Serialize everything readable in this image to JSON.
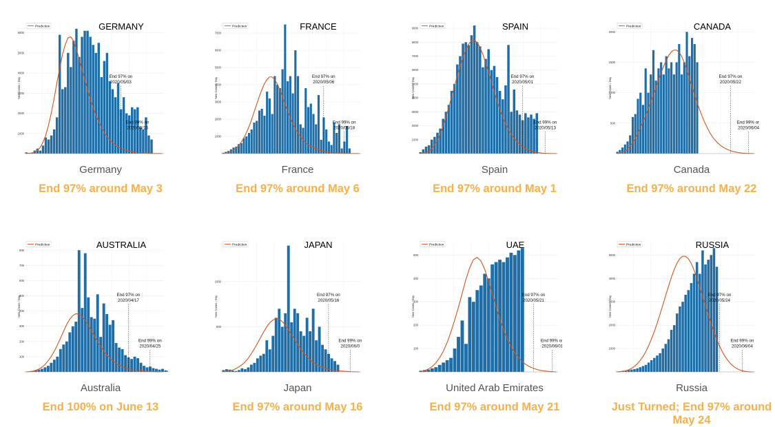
{
  "colors": {
    "bar": "#1f6ea8",
    "prediction": "#d95319",
    "caption": "#f7b04a",
    "label": "#555555"
  },
  "charts": [
    {
      "title": "GERMANY",
      "legend": "Prediction",
      "ylabel": "New Cases / Day",
      "yticks": [
        "1000",
        "2000",
        "3000",
        "4000",
        "5000",
        "6000"
      ],
      "ymax": 6500,
      "end97_label": "End 97% on",
      "end97_date": "2020/05/03",
      "end99_label": "End 99% on",
      "end99_date": "2020/05/15",
      "country": "Germany",
      "caption": "End 97% around May 3",
      "chart_data": {
        "type": "bar",
        "values": [
          60,
          30,
          40,
          150,
          250,
          150,
          400,
          800,
          700,
          900,
          1200,
          1800,
          5900,
          3200,
          3300,
          5000,
          4300,
          5600,
          6200,
          4800,
          5800,
          6100,
          6100,
          5800,
          5400,
          5000,
          5500,
          3800,
          4600,
          5000,
          3600,
          3200,
          2800,
          3500,
          2200,
          2800,
          2000,
          1900,
          2300,
          2200,
          2300,
          1300,
          1200,
          1800,
          900,
          700
        ],
        "prediction": [
          0,
          10,
          30,
          70,
          150,
          300,
          550,
          900,
          1400,
          2000,
          2700,
          3500,
          4200,
          4900,
          5400,
          5750,
          5800,
          5600,
          5200,
          4700,
          4200,
          3700,
          3200,
          2700,
          2300,
          1900,
          1600,
          1300,
          1050,
          850,
          680,
          540,
          430,
          340,
          270,
          210,
          165,
          130,
          100,
          75,
          55,
          40,
          30,
          20,
          12,
          8,
          4,
          2,
          1,
          0
        ],
        "end97_index": 34,
        "end99_index": 40
      }
    },
    {
      "title": "FRANCE",
      "legend": "Prediction",
      "ylabel": "New Cases / Day",
      "yticks": [
        "1000",
        "2000",
        "3000",
        "4000",
        "5000",
        "6000",
        "7000"
      ],
      "ymax": 7600,
      "end97_label": "End 97% on",
      "end97_date": "2020/05/06",
      "end99_label": "End 99% on",
      "end99_date": "2020/05/18",
      "country": "France",
      "caption": "End 97% around May 6",
      "chart_data": {
        "type": "bar",
        "values": [
          50,
          100,
          150,
          250,
          350,
          400,
          550,
          600,
          900,
          1000,
          1200,
          1400,
          1800,
          1900,
          2500,
          2600,
          2200,
          3600,
          3200,
          2300,
          4500,
          4000,
          3800,
          4900,
          7500,
          4200,
          4500,
          3500,
          6000,
          4500,
          1700,
          1500,
          3800,
          2700,
          2900,
          2300,
          1700,
          3400,
          800,
          2100,
          1400,
          700,
          500,
          1800,
          1200,
          1700,
          300,
          700,
          1600,
          300
        ],
        "prediction": [
          0,
          20,
          50,
          100,
          180,
          300,
          450,
          650,
          900,
          1200,
          1550,
          1950,
          2400,
          2850,
          3300,
          3700,
          4050,
          4300,
          4450,
          4450,
          4300,
          4050,
          3700,
          3300,
          2900,
          2500,
          2100,
          1750,
          1450,
          1200,
          980,
          800,
          650,
          530,
          430,
          350,
          280,
          225,
          180,
          145,
          115,
          90,
          70,
          55,
          42,
          32,
          24,
          18,
          12,
          8,
          5,
          3,
          1,
          0
        ],
        "end97_index": 39,
        "end99_index": 47
      }
    },
    {
      "title": "SPAIN",
      "legend": "Prediction",
      "ylabel": "New Cases / Day",
      "yticks": [
        "1000",
        "2000",
        "3000",
        "4000",
        "5000",
        "6000",
        "7000",
        "8000",
        "9000"
      ],
      "ymax": 9400,
      "end97_label": "End 97% on",
      "end97_date": "2020/05/01",
      "end99_label": "End 99% on",
      "end99_date": "2020/05/13",
      "country": "Spain",
      "caption": "End 97% around May 1",
      "chart_data": {
        "type": "bar",
        "values": [
          100,
          300,
          500,
          600,
          1000,
          1200,
          1500,
          1800,
          2500,
          3000,
          3500,
          4500,
          5000,
          6400,
          7000,
          7900,
          8000,
          7800,
          8500,
          9200,
          8000,
          7700,
          6200,
          6800,
          7500,
          6000,
          6300,
          5500,
          4500,
          3900,
          4900,
          7800,
          3000,
          4600,
          3100,
          2800,
          2400,
          2900,
          2600,
          2800,
          2500,
          2900
        ],
        "prediction": [
          0,
          30,
          80,
          180,
          350,
          600,
          950,
          1400,
          1950,
          2600,
          3300,
          4050,
          4800,
          5550,
          6250,
          6900,
          7450,
          7850,
          8100,
          8150,
          8000,
          7650,
          7150,
          6550,
          5850,
          5150,
          4450,
          3800,
          3200,
          2650,
          2150,
          1750,
          1400,
          1100,
          860,
          660,
          500,
          380,
          280,
          200,
          140,
          95,
          60,
          35,
          20,
          10,
          4,
          1,
          0
        ],
        "end97_index": 36,
        "end99_index": 44
      }
    },
    {
      "title": "CANADA",
      "legend": "Prediction",
      "ylabel": "New Cases / Day",
      "yticks": [
        "500",
        "1000",
        "1500",
        "2000"
      ],
      "ymax": 2150,
      "end97_label": "End 97% on",
      "end97_date": "2020/05/22",
      "end99_label": "End 99% on",
      "end99_date": "2020/06/04",
      "country": "Canada",
      "caption": "End 97% around May 22",
      "chart_data": {
        "type": "bar",
        "values": [
          30,
          60,
          100,
          150,
          200,
          300,
          600,
          650,
          900,
          1000,
          800,
          1400,
          1000,
          1300,
          1700,
          1200,
          1400,
          1500,
          1300,
          1600,
          1400,
          1500,
          1300,
          1500,
          1800,
          1300,
          1500,
          2000,
          1600,
          1900,
          1800,
          1500
        ],
        "prediction": [
          0,
          8,
          20,
          40,
          75,
          120,
          180,
          250,
          330,
          420,
          520,
          620,
          730,
          840,
          960,
          1080,
          1200,
          1320,
          1430,
          1530,
          1610,
          1670,
          1700,
          1700,
          1670,
          1600,
          1500,
          1380,
          1250,
          1110,
          970,
          840,
          720,
          610,
          510,
          420,
          340,
          275,
          220,
          175,
          138,
          108,
          83,
          63,
          47,
          35,
          25,
          17,
          11,
          7,
          4,
          2,
          1,
          0
        ],
        "end97_index": 44,
        "end99_index": 51
      }
    },
    {
      "title": "AUSTRALIA",
      "legend": "Prediction",
      "ylabel": "New Cases / Day",
      "yticks": [
        "100",
        "200",
        "300",
        "400",
        "500",
        "600",
        "700",
        "800"
      ],
      "ymax": 860,
      "end97_label": "End 97% on",
      "end97_date": "2020/04/17",
      "end99_label": "End 99% on",
      "end99_date": "2020/04/25",
      "country": "Australia",
      "caption": "End 100% on June 13",
      "chart_data": {
        "type": "bar",
        "values": [
          2,
          3,
          5,
          10,
          15,
          20,
          30,
          40,
          60,
          80,
          100,
          150,
          180,
          200,
          260,
          300,
          330,
          800,
          420,
          780,
          490,
          360,
          350,
          510,
          230,
          450,
          380,
          310,
          340,
          190,
          160,
          150,
          110,
          95,
          85,
          100,
          90,
          60,
          40,
          30,
          35,
          25,
          20,
          15,
          20,
          10,
          8,
          5
        ],
        "prediction": [
          0,
          2,
          5,
          10,
          18,
          30,
          48,
          72,
          100,
          135,
          175,
          220,
          265,
          310,
          345,
          370,
          382,
          380,
          365,
          340,
          308,
          272,
          235,
          200,
          168,
          138,
          112,
          90,
          72,
          57,
          45,
          35,
          27,
          21,
          16,
          12,
          9,
          7,
          5,
          4,
          3,
          2,
          1,
          1,
          0
        ],
        "end97_index": 33,
        "end99_index": 40
      }
    },
    {
      "title": "JAPAN",
      "legend": "Prediction",
      "ylabel": "New Cases / Day",
      "yticks": [
        "500",
        "1000"
      ],
      "ymax": 1450,
      "end97_label": "End 97% on",
      "end97_date": "2020/05/16",
      "end99_label": "End 99% on",
      "end99_date": "2020/06/0",
      "country": "Japan",
      "caption": "End 97% around May 16",
      "chart_data": {
        "type": "bar",
        "values": [
          20,
          30,
          25,
          15,
          10,
          20,
          40,
          30,
          50,
          80,
          100,
          150,
          180,
          200,
          350,
          250,
          400,
          600,
          700,
          500,
          650,
          1400,
          550,
          700,
          650,
          450,
          400,
          600,
          450,
          700,
          350,
          500,
          300,
          250,
          200,
          150,
          120,
          80
        ],
        "prediction": [
          0,
          5,
          12,
          22,
          35,
          55,
          80,
          110,
          150,
          200,
          255,
          315,
          380,
          440,
          500,
          545,
          575,
          590,
          585,
          560,
          520,
          470,
          415,
          360,
          305,
          255,
          210,
          170,
          135,
          108,
          85,
          66,
          51,
          39,
          30,
          23,
          17,
          13,
          10,
          7,
          5,
          3,
          2,
          1,
          0
        ],
        "end97_index": 34,
        "end99_index": 41
      }
    },
    {
      "title": "UAE",
      "legend": "Prediction",
      "ylabel": "New Cases / Day",
      "yticks": [
        "100",
        "200",
        "300",
        "400",
        "500"
      ],
      "ymax": 560,
      "end97_label": "End 97% on",
      "end97_date": "2020/05/21",
      "end99_label": "End 99% on",
      "end99_date": "2020/06/01",
      "country": "United Arab Emirates",
      "caption": "End 97% around May 21",
      "chart_data": {
        "type": "bar",
        "values": [
          5,
          8,
          10,
          15,
          20,
          30,
          40,
          50,
          60,
          100,
          150,
          220,
          120,
          320,
          300,
          350,
          370,
          420,
          400,
          460,
          470,
          480,
          470,
          490,
          510,
          500,
          520,
          530
        ],
        "prediction": [
          0,
          5,
          12,
          22,
          38,
          60,
          88,
          125,
          170,
          220,
          275,
          335,
          395,
          445,
          480,
          490,
          475,
          440,
          390,
          335,
          280,
          228,
          182,
          142,
          109,
          82,
          60,
          44,
          31,
          22,
          15,
          10,
          6,
          4,
          2,
          1,
          0
        ],
        "end97_index": 30,
        "end99_index": 35
      }
    },
    {
      "title": "RUSSIA",
      "legend": "Prediction",
      "ylabel": "New Cases / Day",
      "yticks": [
        "1000",
        "2000",
        "3000",
        "4000",
        "5000"
      ],
      "ymax": 5600,
      "end97_label": "End 97% on",
      "end97_date": "2020/05/24",
      "end99_label": "End 99% on",
      "end99_date": "2020/06/04",
      "country": "Russia",
      "caption": "Just Turned; End 97% around May 24",
      "chart_data": {
        "type": "bar",
        "values": [
          20,
          30,
          50,
          60,
          80,
          100,
          120,
          150,
          200,
          250,
          300,
          400,
          500,
          600,
          700,
          800,
          1000,
          1200,
          1400,
          1800,
          2000,
          2500,
          2800,
          3000,
          3300,
          3500,
          3800,
          4200,
          4700,
          4200,
          5200,
          4600,
          4800,
          5000,
          5300,
          4500
        ],
        "prediction": [
          0,
          10,
          25,
          50,
          90,
          150,
          230,
          340,
          480,
          650,
          860,
          1110,
          1400,
          1720,
          2070,
          2450,
          2850,
          3250,
          3650,
          4030,
          4370,
          4650,
          4850,
          4950,
          4950,
          4850,
          4650,
          4370,
          4030,
          3650,
          3250,
          2850,
          2450,
          2070,
          1720,
          1400,
          1110,
          860,
          650,
          480,
          340,
          230,
          150,
          90,
          50,
          25,
          10,
          3,
          0
        ],
        "end97_index": 36,
        "end99_index": 44
      }
    }
  ]
}
